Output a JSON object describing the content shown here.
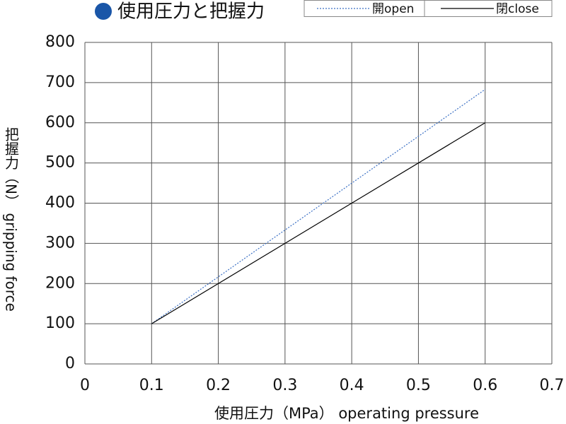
{
  "chart_data": {
    "type": "line",
    "title": "使用圧力と把握力",
    "xlabel": "使用圧力（MPa） operating pressure",
    "ylabel": "把握力（N） gripping force",
    "x": [
      0.1,
      0.6
    ],
    "series": [
      {
        "name": "開open",
        "color": "#3a6fc4",
        "dash": "dotted",
        "values": [
          100,
          683
        ]
      },
      {
        "name": "閉close",
        "color": "#000000",
        "dash": "solid",
        "values": [
          100,
          600
        ]
      }
    ],
    "xlim": [
      0,
      0.7
    ],
    "xticks": [
      0,
      0.1,
      0.2,
      0.3,
      0.4,
      0.5,
      0.6,
      0.7
    ],
    "ylim": [
      0,
      800
    ],
    "yticks": [
      0,
      100,
      200,
      300,
      400,
      500,
      600,
      700,
      800
    ],
    "grid": true,
    "legend": "top"
  }
}
